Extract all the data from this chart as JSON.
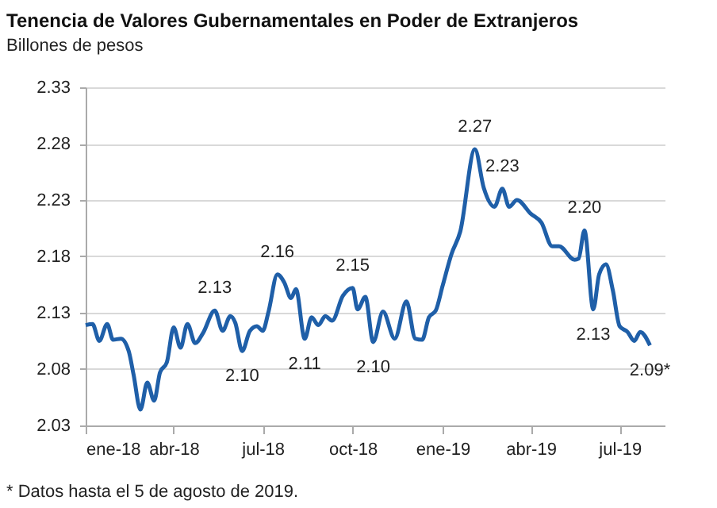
{
  "chart_data": {
    "type": "line",
    "title": "Tenencia de Valores Gubernamentales en Poder de Extranjeros",
    "subtitle": "Billones de pesos",
    "x": [
      "2018-01-01",
      "2018-01-08",
      "2018-01-15",
      "2018-01-23",
      "2018-01-29",
      "2018-02-06",
      "2018-02-14",
      "2018-02-19",
      "2018-02-26",
      "2018-03-05",
      "2018-03-12",
      "2018-03-18",
      "2018-03-25",
      "2018-04-01",
      "2018-04-08",
      "2018-04-15",
      "2018-04-23",
      "2018-05-01",
      "2018-05-13",
      "2018-05-21",
      "2018-05-29",
      "2018-06-03",
      "2018-06-10",
      "2018-06-18",
      "2018-06-25",
      "2018-07-01",
      "2018-07-07",
      "2018-07-16",
      "2018-07-23",
      "2018-07-30",
      "2018-08-04",
      "2018-08-13",
      "2018-08-20",
      "2018-08-27",
      "2018-09-03",
      "2018-09-10",
      "2018-09-21",
      "2018-10-01",
      "2018-10-06",
      "2018-10-14",
      "2018-10-22",
      "2018-11-01",
      "2018-11-13",
      "2018-11-25",
      "2018-12-04",
      "2018-12-11",
      "2018-12-18",
      "2018-12-25",
      "2019-01-01",
      "2019-01-10",
      "2019-01-19",
      "2019-02-03",
      "2019-02-12",
      "2019-02-23",
      "2019-03-03",
      "2019-03-10",
      "2019-03-18",
      "2019-04-01",
      "2019-04-12",
      "2019-04-23",
      "2019-04-30",
      "2019-05-16",
      "2019-05-20",
      "2019-05-26",
      "2019-06-04",
      "2019-06-10",
      "2019-06-17",
      "2019-06-24",
      "2019-07-01",
      "2019-07-09",
      "2019-07-16",
      "2019-07-22",
      "2019-08-01"
    ],
    "series": [
      {
        "color": "#1f5fa8",
        "values": [
          2.119,
          2.12,
          2.105,
          2.12,
          2.106,
          2.107,
          2.096,
          2.075,
          2.044,
          2.068,
          2.052,
          2.077,
          2.086,
          2.117,
          2.099,
          2.12,
          2.103,
          2.112,
          2.132,
          2.114,
          2.127,
          2.121,
          2.096,
          2.114,
          2.118,
          2.114,
          2.131,
          2.164,
          2.157,
          2.143,
          2.151,
          2.107,
          2.126,
          2.119,
          2.127,
          2.123,
          2.145,
          2.152,
          2.133,
          2.144,
          2.104,
          2.131,
          2.107,
          2.14,
          2.107,
          2.106,
          2.126,
          2.132,
          2.154,
          2.182,
          2.202,
          2.275,
          2.241,
          2.224,
          2.24,
          2.224,
          2.23,
          2.218,
          2.21,
          2.189,
          2.189,
          2.177,
          2.178,
          2.203,
          2.133,
          2.164,
          2.173,
          2.15,
          2.118,
          2.113,
          2.105,
          2.113,
          2.101
        ]
      }
    ],
    "xlim": [
      "2018-01-01",
      "2019-08-16"
    ],
    "xticks": [
      {
        "value": "2018-01-01",
        "label": "ene-18"
      },
      {
        "value": "2018-04-01",
        "label": "abr-18"
      },
      {
        "value": "2018-07-01",
        "label": "jul-18"
      },
      {
        "value": "2018-10-01",
        "label": "oct-18"
      },
      {
        "value": "2019-01-01",
        "label": "ene-19"
      },
      {
        "value": "2019-04-01",
        "label": "abr-19"
      },
      {
        "value": "2019-07-01",
        "label": "jul-19"
      }
    ],
    "ylim": [
      2.03,
      2.33
    ],
    "yticks": [
      {
        "value": 2.03,
        "label": "2.03"
      },
      {
        "value": 2.08,
        "label": "2.08"
      },
      {
        "value": 2.13,
        "label": "2.13"
      },
      {
        "value": 2.18,
        "label": "2.18"
      },
      {
        "value": 2.23,
        "label": "2.23"
      },
      {
        "value": 2.28,
        "label": "2.28"
      },
      {
        "value": 2.33,
        "label": "2.33"
      }
    ],
    "grid": "y",
    "annotations": [
      {
        "text": "2.13",
        "x": "2018-05-13",
        "y": 2.132
      },
      {
        "text": "2.10",
        "x": "2018-06-10",
        "y": 2.096
      },
      {
        "text": "2.16",
        "x": "2018-07-16",
        "y": 2.164
      },
      {
        "text": "2.11",
        "x": "2018-08-13",
        "y": 2.107
      },
      {
        "text": "2.15",
        "x": "2018-10-01",
        "y": 2.152
      },
      {
        "text": "2.10",
        "x": "2018-10-22",
        "y": 2.104
      },
      {
        "text": "2.27",
        "x": "2019-02-03",
        "y": 2.275
      },
      {
        "text": "2.23",
        "x": "2019-03-03",
        "y": 2.24
      },
      {
        "text": "2.20",
        "x": "2019-05-26",
        "y": 2.203
      },
      {
        "text": "2.13",
        "x": "2019-06-04",
        "y": 2.133
      },
      {
        "text": "2.09*",
        "x": "2019-08-01",
        "y": 2.101
      },
      "* Datos hasta el 5 de agosto de 2019."
    ]
  }
}
